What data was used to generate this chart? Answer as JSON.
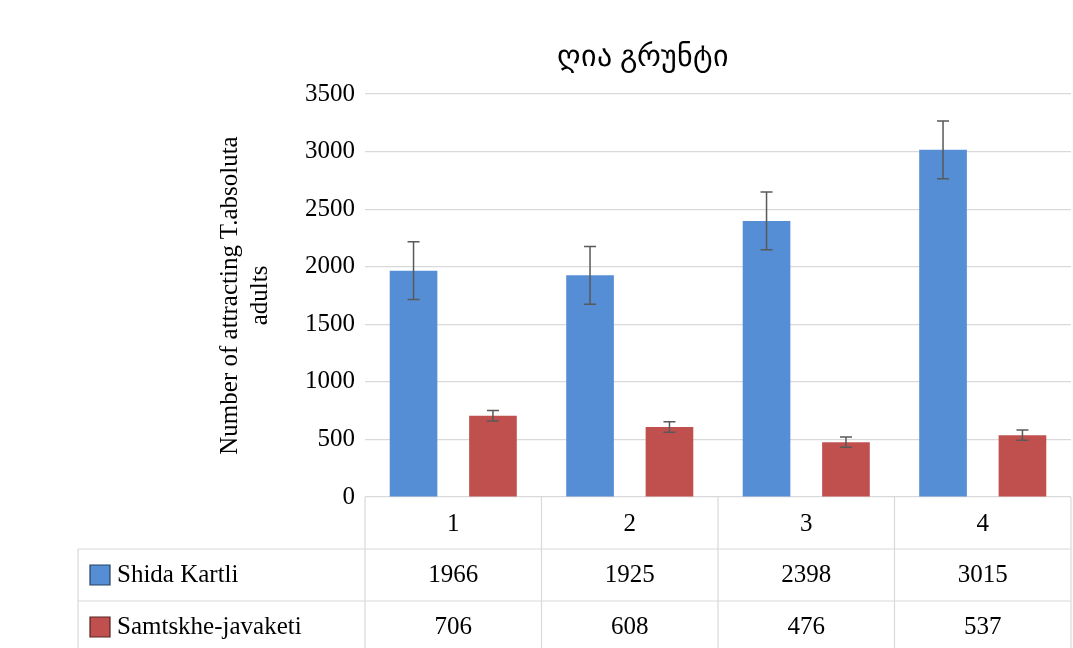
{
  "chart_data": {
    "type": "bar",
    "title": "ღია გრუნტი",
    "ylabel": "Number of attracting T.absoluta adults",
    "categories": [
      "1",
      "2",
      "3",
      "4"
    ],
    "series": [
      {
        "name": "Shida Kartli",
        "color": "#558ed5",
        "values": [
          1966,
          1925,
          2398,
          3015
        ],
        "errors": [
          250,
          250,
          250,
          250
        ]
      },
      {
        "name": "Samtskhe-javaketi",
        "color": "#c0504d",
        "values": [
          706,
          608,
          476,
          537
        ],
        "errors": [
          45,
          45,
          45,
          45
        ]
      }
    ],
    "ylim": [
      0,
      3500
    ],
    "yticks": [
      0,
      500,
      1000,
      1500,
      2000,
      2500,
      3000,
      3500
    ],
    "grid": "y",
    "legend": "bottom",
    "data_labels": true
  }
}
